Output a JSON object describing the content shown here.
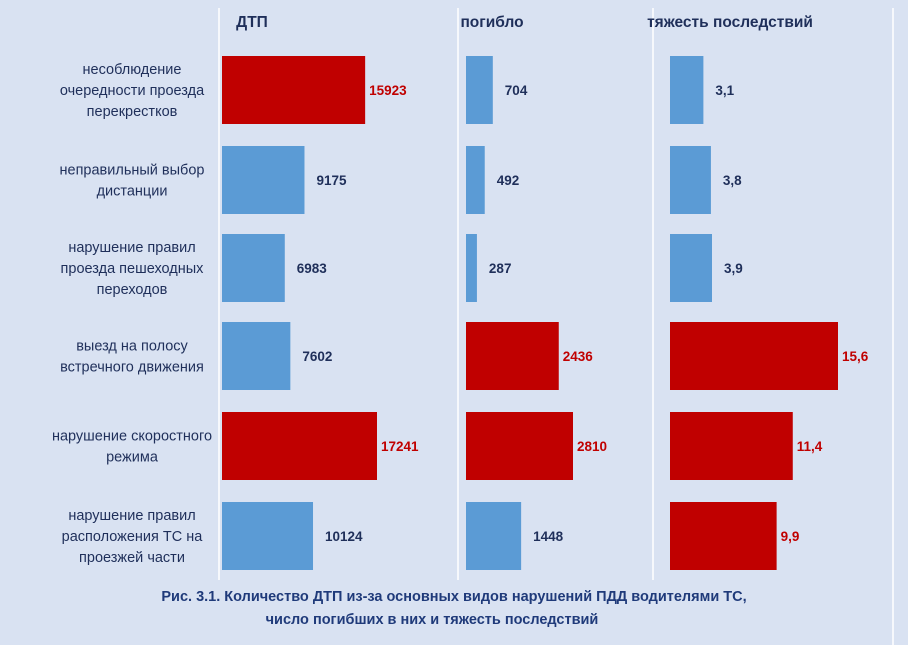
{
  "colors": {
    "background": "#d9e2f2",
    "highlight": "#c00000",
    "normal": "#5b9bd5",
    "text": "#1f2f5a",
    "caption": "#1f3a7a"
  },
  "chart_data": {
    "type": "bar",
    "orientation": "horizontal",
    "categories": [
      "несоблюдение очередности проезда перекрестков",
      "неправильный выбор дистанции",
      "нарушение правил проезда пешеходных переходов",
      "выезд на полосу встречного движения",
      "нарушение скоростного режима",
      "нарушение правил расположения ТС на проезжей части"
    ],
    "category_lines": [
      [
        "несоблюдение",
        "очередности проезда",
        "перекрестков"
      ],
      [
        "неправильный выбор",
        "дистанции"
      ],
      [
        "нарушение правил",
        "проезда пешеходных",
        "переходов"
      ],
      [
        "выезд на полосу",
        "встречного движения"
      ],
      [
        "нарушение скоростного",
        "режима"
      ],
      [
        "нарушение правил",
        "расположения ТС на",
        "проезжей части"
      ]
    ],
    "series": [
      {
        "name": "ДТП",
        "values": [
          15923,
          9175,
          6983,
          7602,
          17241,
          10124
        ],
        "labels": [
          "15923",
          "9175",
          "6983",
          "7602",
          "17241",
          "10124"
        ],
        "highlight": [
          true,
          false,
          false,
          false,
          true,
          false
        ]
      },
      {
        "name": "погибло",
        "values": [
          704,
          492,
          287,
          2436,
          2810,
          1448
        ],
        "labels": [
          "704",
          "492",
          "287",
          "2436",
          "2810",
          "1448"
        ],
        "highlight": [
          false,
          false,
          false,
          true,
          true,
          false
        ]
      },
      {
        "name": "тяжесть последствий",
        "values": [
          3.1,
          3.8,
          3.9,
          15.6,
          11.4,
          9.9
        ],
        "labels": [
          "3,1",
          "3,8",
          "3,9",
          "15,6",
          "11,4",
          "9,9"
        ],
        "highlight": [
          false,
          false,
          false,
          true,
          true,
          true
        ]
      }
    ]
  },
  "caption": {
    "line1": "Рис. 3.1. Количество ДТП из-за основных видов нарушений ПДД водителями ТС,",
    "line2": "число погибших в них и тяжесть последствий"
  }
}
